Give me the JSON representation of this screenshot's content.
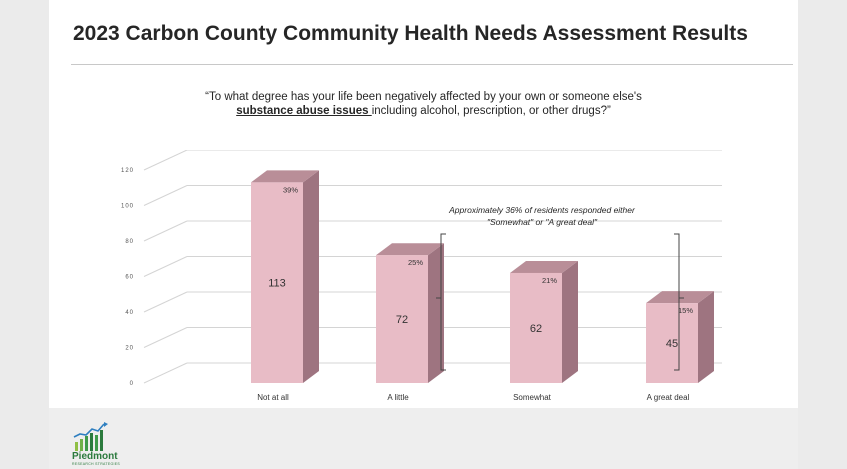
{
  "slide": {
    "title": "2023 Carbon County Community Health Needs Assessment Results",
    "question_line1": "“To what degree has your life been negatively affected by your own or someone else's",
    "question_emph": "substance abuse issues ",
    "question_line2_rest": "including alcohol, prescription, or other drugs?”"
  },
  "logo": {
    "name": "Piedmont",
    "sub": "RESEARCH STRATEGIES"
  },
  "chart_data": {
    "type": "bar",
    "categories": [
      "Not at all",
      "A little",
      "Somewhat",
      "A great deal"
    ],
    "series": [
      {
        "values": [
          113,
          72,
          62,
          45
        ],
        "percent_labels": [
          "39%",
          "25%",
          "21%",
          "15%"
        ]
      }
    ],
    "y_ticks": [
      "0",
      "20",
      "40",
      "60",
      "80",
      "100",
      "120"
    ],
    "ylim": [
      0,
      120
    ],
    "grid": true,
    "annotation": "Approximately 36% of residents responded either \"Somewhat\" or \"A great deal\"",
    "bar_color": "#e8bcc6",
    "bar_side_color": "#9e7480",
    "bar_top_color": "#b98e98"
  }
}
